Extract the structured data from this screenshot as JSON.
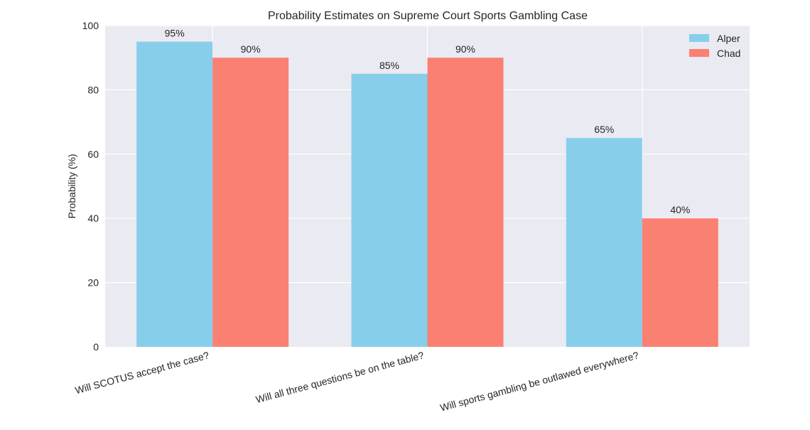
{
  "chart_data": {
    "type": "bar",
    "title": "Probability Estimates on Supreme Court Sports Gambling Case",
    "xlabel": "",
    "ylabel": "Probability (%)",
    "ylim": [
      0,
      100
    ],
    "yticks": [
      0,
      20,
      40,
      60,
      80,
      100
    ],
    "grid": true,
    "legend_position": "top-right",
    "categories": [
      "Will SCOTUS accept the case?",
      "Will all three questions be on the table?",
      "Will sports gambling be outlawed everywhere?"
    ],
    "series": [
      {
        "name": "Alper",
        "color": "#87CEEB",
        "values": [
          95,
          85,
          65
        ],
        "labels": [
          "95%",
          "85%",
          "65%"
        ]
      },
      {
        "name": "Chad",
        "color": "#FA8072",
        "values": [
          90,
          90,
          40
        ],
        "labels": [
          "90%",
          "90%",
          "40%"
        ]
      }
    ],
    "colors": {
      "plot_background": "#EAEAF2",
      "grid": "#FFFFFF"
    }
  }
}
